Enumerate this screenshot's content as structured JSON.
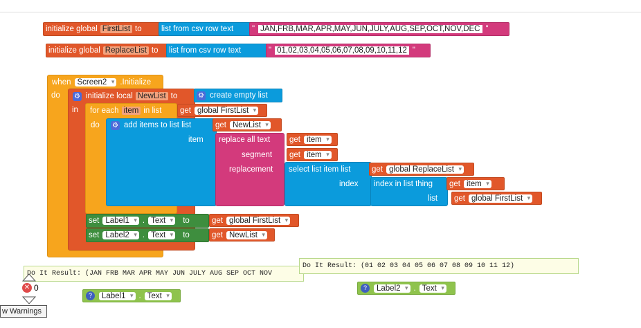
{
  "init1": {
    "prefix": "initialize global",
    "var": "FirstList",
    "to": "to",
    "fn": "list from csv row  text",
    "value": "JAN,FRB,MAR,APR,MAY,JUN,JULY,AUG,SEP,OCT,NOV,DEC"
  },
  "init2": {
    "prefix": "initialize global",
    "var": "ReplaceList",
    "to": "to",
    "fn": "list from csv row  text",
    "value": " 01,02,03,04,05,06,07,08,09,10,11,12"
  },
  "event": {
    "when": "when",
    "component": "Screen2",
    "event": ".Initialize",
    "do": "do"
  },
  "local": {
    "prefix": "initialize local",
    "var": "NewList",
    "to": "to",
    "fn": "create empty list",
    "in": "in"
  },
  "foreach": {
    "prefix": "for each",
    "var": "item",
    "in_list": "in list",
    "get": "get",
    "target": "global FirstList",
    "do": "do"
  },
  "additems": {
    "label": "add items to list  list",
    "get": "get",
    "target": "NewList",
    "item": "item"
  },
  "replace": {
    "label": "replace all text",
    "segment": "segment",
    "replacement": "replacement",
    "get1": "get",
    "arg1": "item",
    "get2": "get",
    "arg2": "item"
  },
  "select": {
    "label": "select list item  list",
    "get": "get",
    "target": "global ReplaceList",
    "index": "index"
  },
  "indexin": {
    "label": "index in list  thing",
    "get": "get",
    "thing": "item",
    "list": "list",
    "get2": "get",
    "list_target": "global FirstList"
  },
  "set1": {
    "set": "set",
    "comp": "Label1",
    "prop": "Text",
    "to": "to",
    "get": "get",
    "target": "global FirstList"
  },
  "set2": {
    "set": "set",
    "comp": "Label2",
    "prop": "Text",
    "to": "to",
    "get": "get",
    "target": "NewList"
  },
  "result1": {
    "text": "Do It Result: (JAN FRB MAR APR MAY JUN JULY AUG SEP OCT NOV"
  },
  "result2": {
    "text": "Do It Result: (01 02 03 04 05 06 07 08 09 10 11 12)"
  },
  "label1": {
    "comp": "Label1",
    "prop": "Text"
  },
  "label2": {
    "comp": "Label2",
    "prop": "Text"
  },
  "warnings": {
    "error_count": "0",
    "button": "w Warnings"
  },
  "icons": {
    "gear": "gear-icon",
    "help": "help-icon",
    "error": "error-icon"
  },
  "colors": {
    "orange": "#e1572a",
    "blue": "#0b9bdc",
    "magenta": "#d33a7c",
    "yellow": "#f7a51d",
    "green": "#3e8e3e",
    "lightgreen": "#8fc34d"
  }
}
